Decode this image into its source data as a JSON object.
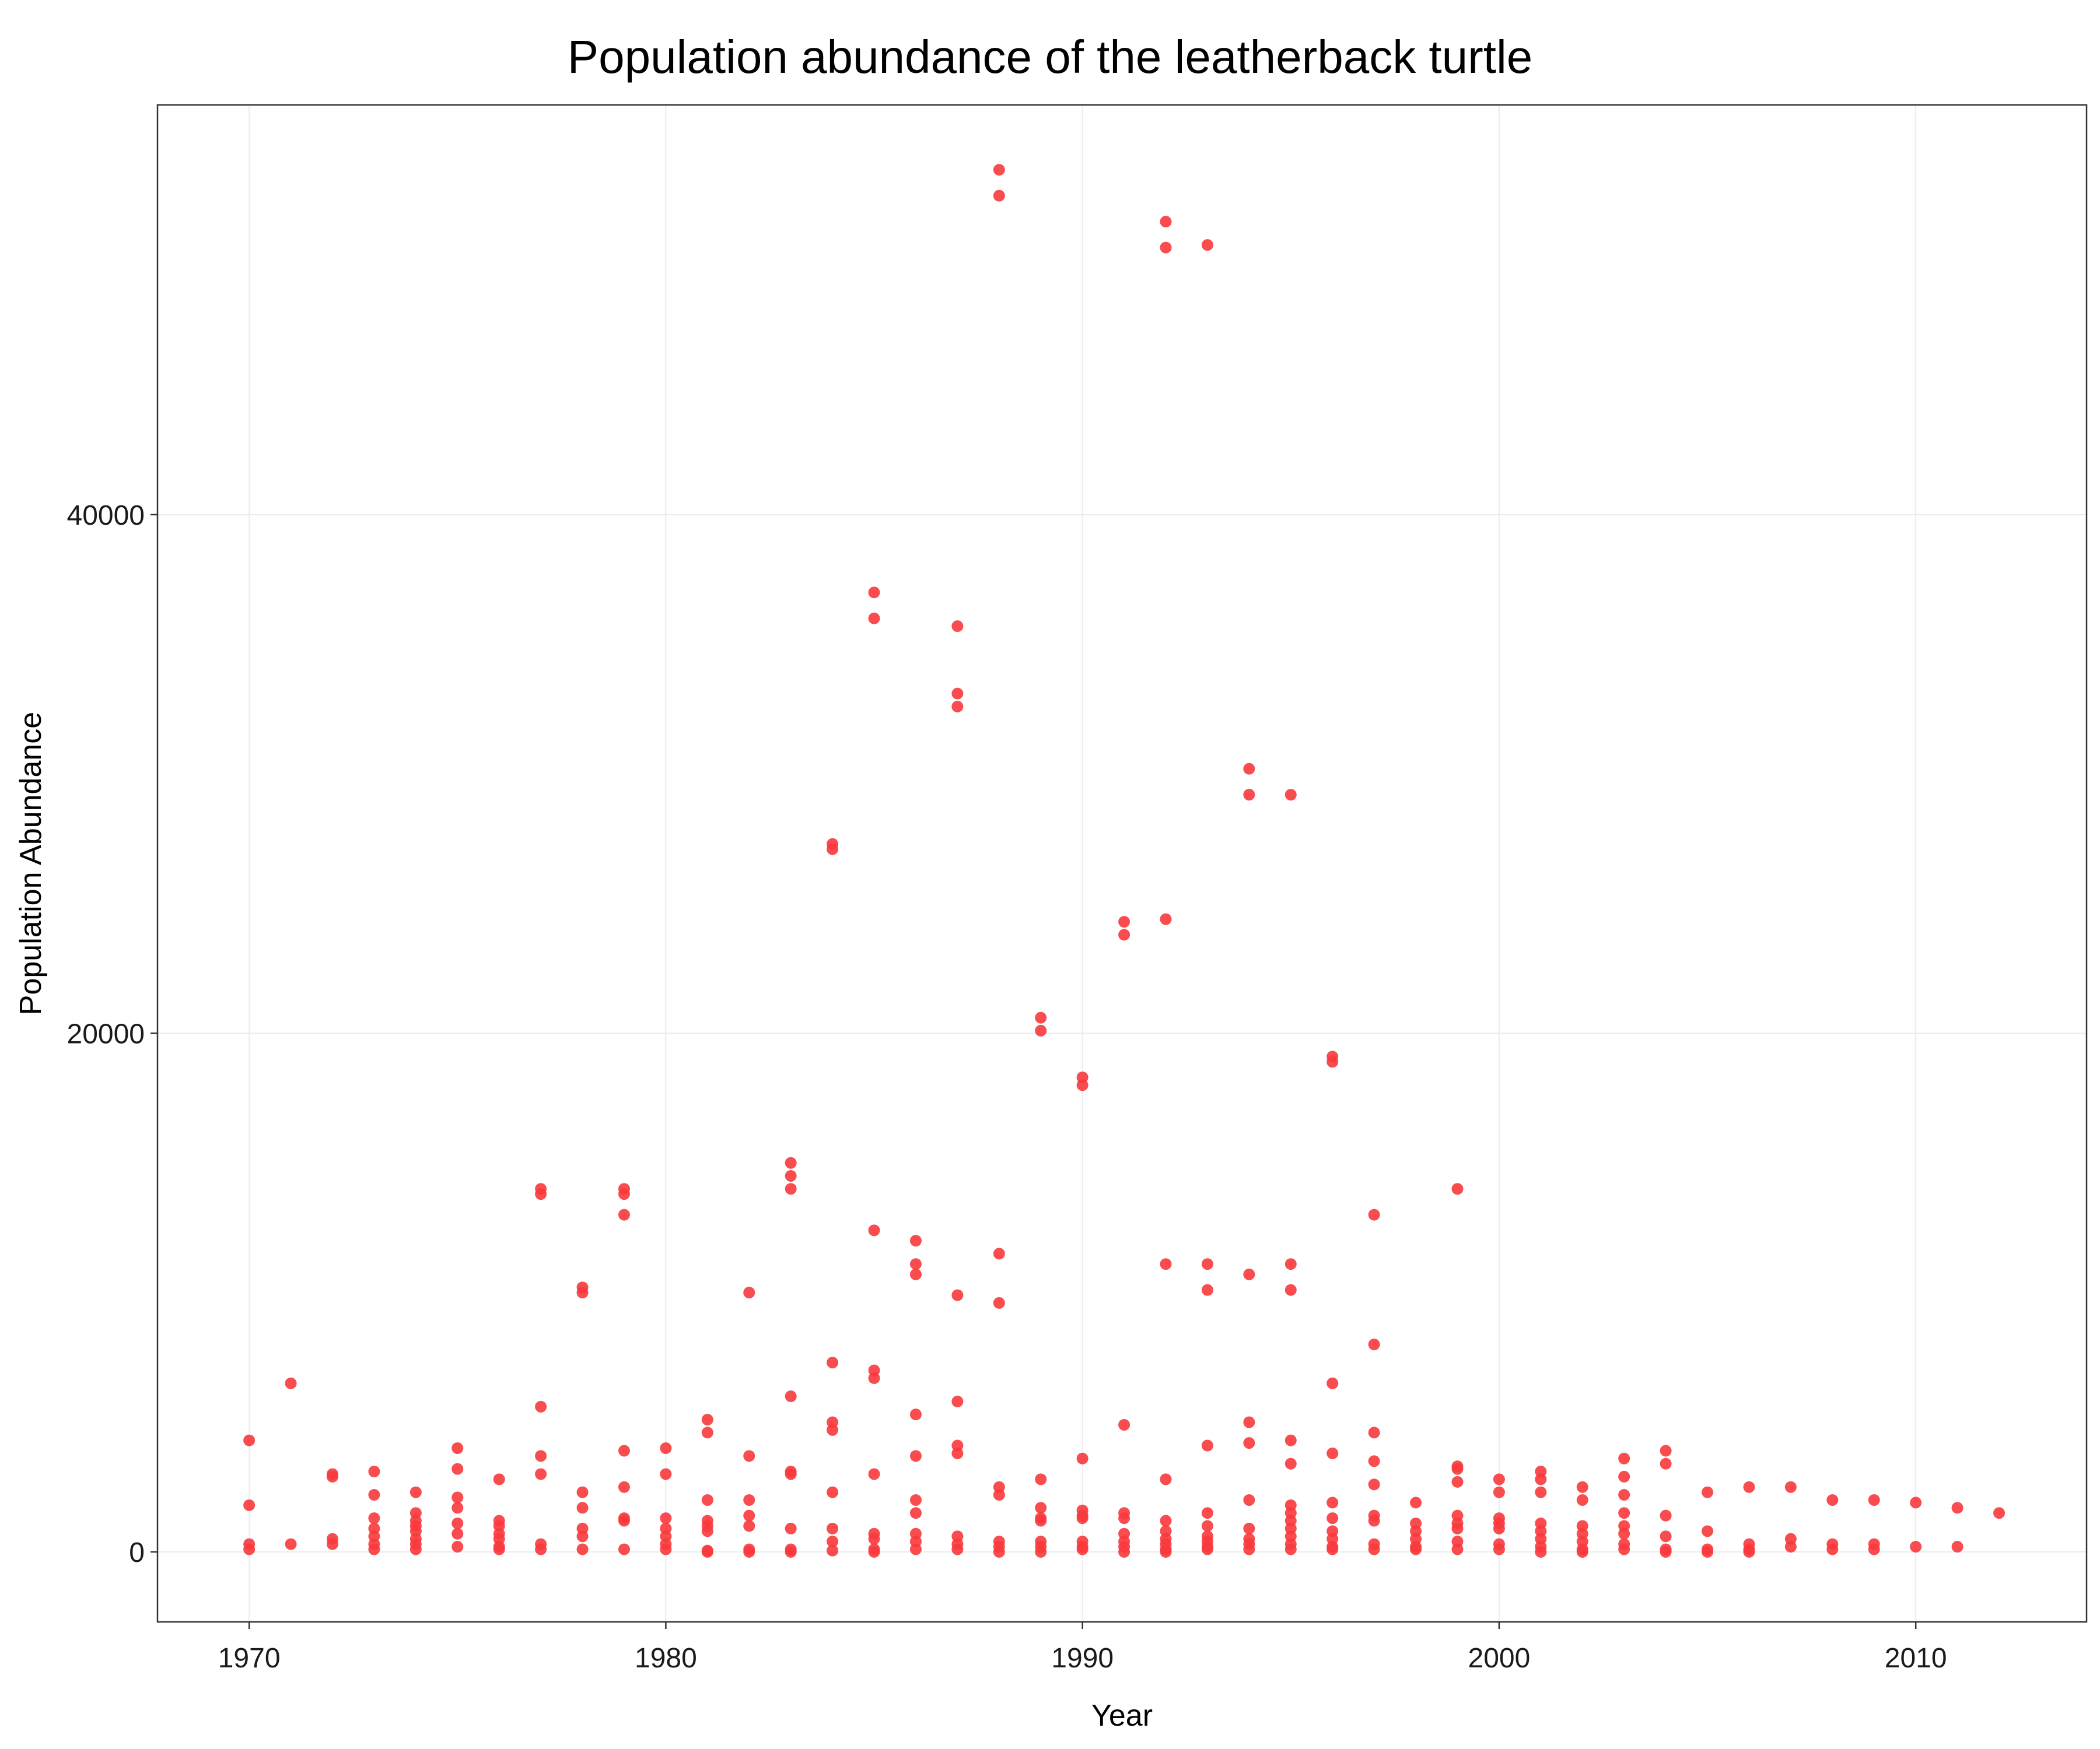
{
  "chart_data": {
    "type": "scatter",
    "title": "Population abundance of the leatherback turtle",
    "xlabel": "Year",
    "ylabel": "Population Abundance",
    "xlim": [
      1967.8,
      2014.1
    ],
    "ylim": [
      -2700,
      55800
    ],
    "x_ticks": [
      1970,
      1980,
      1990,
      2000,
      2010
    ],
    "y_ticks": [
      0,
      20000,
      40000
    ],
    "grid": true,
    "legend": "none",
    "point_color": "#F8393C",
    "points": [
      [
        1970,
        4300
      ],
      [
        1970,
        1800
      ],
      [
        1970,
        300
      ],
      [
        1970,
        100
      ],
      [
        1971,
        6500
      ],
      [
        1971,
        300
      ],
      [
        1972,
        3000
      ],
      [
        1972,
        2900
      ],
      [
        1972,
        500
      ],
      [
        1972,
        300
      ],
      [
        1973,
        3100
      ],
      [
        1973,
        2200
      ],
      [
        1973,
        1300
      ],
      [
        1973,
        900
      ],
      [
        1973,
        600
      ],
      [
        1973,
        300
      ],
      [
        1973,
        100
      ],
      [
        1974,
        2300
      ],
      [
        1974,
        1500
      ],
      [
        1974,
        1200
      ],
      [
        1974,
        1000
      ],
      [
        1974,
        800
      ],
      [
        1974,
        500
      ],
      [
        1974,
        300
      ],
      [
        1974,
        100
      ],
      [
        1975,
        4000
      ],
      [
        1975,
        3200
      ],
      [
        1975,
        2100
      ],
      [
        1975,
        1700
      ],
      [
        1975,
        1100
      ],
      [
        1975,
        700
      ],
      [
        1975,
        200
      ],
      [
        1976,
        2800
      ],
      [
        1976,
        1200
      ],
      [
        1976,
        1000
      ],
      [
        1976,
        700
      ],
      [
        1976,
        500
      ],
      [
        1976,
        200
      ],
      [
        1976,
        100
      ],
      [
        1977,
        14000
      ],
      [
        1977,
        13800
      ],
      [
        1977,
        5600
      ],
      [
        1977,
        3700
      ],
      [
        1977,
        3000
      ],
      [
        1977,
        300
      ],
      [
        1977,
        100
      ],
      [
        1978,
        10200
      ],
      [
        1978,
        10000
      ],
      [
        1978,
        2300
      ],
      [
        1978,
        1700
      ],
      [
        1978,
        900
      ],
      [
        1978,
        600
      ],
      [
        1978,
        100
      ],
      [
        1979,
        14000
      ],
      [
        1979,
        13800
      ],
      [
        1979,
        13000
      ],
      [
        1979,
        3900
      ],
      [
        1979,
        2500
      ],
      [
        1979,
        1300
      ],
      [
        1979,
        1200
      ],
      [
        1979,
        100
      ],
      [
        1980,
        4000
      ],
      [
        1980,
        3000
      ],
      [
        1980,
        1300
      ],
      [
        1980,
        900
      ],
      [
        1980,
        600
      ],
      [
        1980,
        300
      ],
      [
        1980,
        100
      ],
      [
        1981,
        5100
      ],
      [
        1981,
        4600
      ],
      [
        1981,
        2000
      ],
      [
        1981,
        1200
      ],
      [
        1981,
        1000
      ],
      [
        1981,
        800
      ],
      [
        1981,
        50
      ],
      [
        1981,
        0
      ],
      [
        1982,
        10000
      ],
      [
        1982,
        3700
      ],
      [
        1982,
        2000
      ],
      [
        1982,
        1400
      ],
      [
        1982,
        1000
      ],
      [
        1982,
        100
      ],
      [
        1982,
        0
      ],
      [
        1983,
        15000
      ],
      [
        1983,
        14500
      ],
      [
        1983,
        14000
      ],
      [
        1983,
        6000
      ],
      [
        1983,
        3100
      ],
      [
        1983,
        3000
      ],
      [
        1983,
        900
      ],
      [
        1983,
        100
      ],
      [
        1983,
        0
      ],
      [
        1984,
        27300
      ],
      [
        1984,
        27100
      ],
      [
        1984,
        7300
      ],
      [
        1984,
        5000
      ],
      [
        1984,
        4700
      ],
      [
        1984,
        2300
      ],
      [
        1984,
        900
      ],
      [
        1984,
        400
      ],
      [
        1984,
        50
      ],
      [
        1985,
        37000
      ],
      [
        1985,
        36000
      ],
      [
        1985,
        12400
      ],
      [
        1985,
        7000
      ],
      [
        1985,
        6700
      ],
      [
        1985,
        3000
      ],
      [
        1985,
        700
      ],
      [
        1985,
        500
      ],
      [
        1985,
        100
      ],
      [
        1985,
        0
      ],
      [
        1986,
        12000
      ],
      [
        1986,
        11100
      ],
      [
        1986,
        10700
      ],
      [
        1986,
        5300
      ],
      [
        1986,
        3700
      ],
      [
        1986,
        2000
      ],
      [
        1986,
        1500
      ],
      [
        1986,
        700
      ],
      [
        1986,
        400
      ],
      [
        1986,
        100
      ],
      [
        1987,
        35700
      ],
      [
        1987,
        33100
      ],
      [
        1987,
        32600
      ],
      [
        1987,
        9900
      ],
      [
        1987,
        5800
      ],
      [
        1987,
        4100
      ],
      [
        1987,
        3800
      ],
      [
        1987,
        600
      ],
      [
        1987,
        300
      ],
      [
        1987,
        100
      ],
      [
        1988,
        53300
      ],
      [
        1988,
        52300
      ],
      [
        1988,
        11500
      ],
      [
        1988,
        9600
      ],
      [
        1988,
        2500
      ],
      [
        1988,
        2200
      ],
      [
        1988,
        400
      ],
      [
        1988,
        200
      ],
      [
        1988,
        0
      ],
      [
        1989,
        20600
      ],
      [
        1989,
        20100
      ],
      [
        1989,
        2800
      ],
      [
        1989,
        1700
      ],
      [
        1989,
        1300
      ],
      [
        1989,
        1200
      ],
      [
        1989,
        400
      ],
      [
        1989,
        200
      ],
      [
        1989,
        0
      ],
      [
        1990,
        18300
      ],
      [
        1990,
        18000
      ],
      [
        1990,
        3600
      ],
      [
        1990,
        1600
      ],
      [
        1990,
        1400
      ],
      [
        1990,
        1300
      ],
      [
        1990,
        400
      ],
      [
        1990,
        200
      ],
      [
        1990,
        100
      ],
      [
        1991,
        24300
      ],
      [
        1991,
        23800
      ],
      [
        1991,
        4900
      ],
      [
        1991,
        1500
      ],
      [
        1991,
        1300
      ],
      [
        1991,
        700
      ],
      [
        1991,
        400
      ],
      [
        1991,
        200
      ],
      [
        1991,
        0
      ],
      [
        1992,
        51300
      ],
      [
        1992,
        50300
      ],
      [
        1992,
        24400
      ],
      [
        1992,
        11100
      ],
      [
        1992,
        2800
      ],
      [
        1992,
        1200
      ],
      [
        1992,
        800
      ],
      [
        1992,
        500
      ],
      [
        1992,
        300
      ],
      [
        1992,
        100
      ],
      [
        1992,
        0
      ],
      [
        1993,
        50400
      ],
      [
        1993,
        11100
      ],
      [
        1993,
        10100
      ],
      [
        1993,
        4100
      ],
      [
        1993,
        1500
      ],
      [
        1993,
        1000
      ],
      [
        1993,
        600
      ],
      [
        1993,
        400
      ],
      [
        1993,
        200
      ],
      [
        1993,
        100
      ],
      [
        1994,
        30200
      ],
      [
        1994,
        29200
      ],
      [
        1994,
        10700
      ],
      [
        1994,
        5000
      ],
      [
        1994,
        4200
      ],
      [
        1994,
        2000
      ],
      [
        1994,
        900
      ],
      [
        1994,
        500
      ],
      [
        1994,
        300
      ],
      [
        1994,
        100
      ],
      [
        1995,
        29200
      ],
      [
        1995,
        11100
      ],
      [
        1995,
        10100
      ],
      [
        1995,
        4300
      ],
      [
        1995,
        3400
      ],
      [
        1995,
        1800
      ],
      [
        1995,
        1500
      ],
      [
        1995,
        1200
      ],
      [
        1995,
        900
      ],
      [
        1995,
        600
      ],
      [
        1995,
        300
      ],
      [
        1995,
        100
      ],
      [
        1996,
        19100
      ],
      [
        1996,
        18900
      ],
      [
        1996,
        6500
      ],
      [
        1996,
        3800
      ],
      [
        1996,
        1900
      ],
      [
        1996,
        1300
      ],
      [
        1996,
        800
      ],
      [
        1996,
        500
      ],
      [
        1996,
        200
      ],
      [
        1996,
        100
      ],
      [
        1997,
        13000
      ],
      [
        1997,
        8000
      ],
      [
        1997,
        4600
      ],
      [
        1997,
        3500
      ],
      [
        1997,
        2600
      ],
      [
        1997,
        1400
      ],
      [
        1997,
        1200
      ],
      [
        1997,
        300
      ],
      [
        1997,
        100
      ],
      [
        1998,
        1900
      ],
      [
        1998,
        1100
      ],
      [
        1998,
        800
      ],
      [
        1998,
        500
      ],
      [
        1998,
        200
      ],
      [
        1998,
        100
      ],
      [
        1999,
        14000
      ],
      [
        1999,
        3300
      ],
      [
        1999,
        3200
      ],
      [
        1999,
        2700
      ],
      [
        1999,
        1400
      ],
      [
        1999,
        1100
      ],
      [
        1999,
        900
      ],
      [
        1999,
        400
      ],
      [
        1999,
        100
      ],
      [
        2000,
        2800
      ],
      [
        2000,
        2300
      ],
      [
        2000,
        1300
      ],
      [
        2000,
        1100
      ],
      [
        2000,
        900
      ],
      [
        2000,
        300
      ],
      [
        2000,
        100
      ],
      [
        2001,
        3100
      ],
      [
        2001,
        2800
      ],
      [
        2001,
        2300
      ],
      [
        2001,
        1100
      ],
      [
        2001,
        800
      ],
      [
        2001,
        500
      ],
      [
        2001,
        200
      ],
      [
        2001,
        0
      ],
      [
        2002,
        2500
      ],
      [
        2002,
        2000
      ],
      [
        2002,
        1000
      ],
      [
        2002,
        700
      ],
      [
        2002,
        400
      ],
      [
        2002,
        100
      ],
      [
        2002,
        0
      ],
      [
        2003,
        3600
      ],
      [
        2003,
        2900
      ],
      [
        2003,
        2200
      ],
      [
        2003,
        1500
      ],
      [
        2003,
        1000
      ],
      [
        2003,
        700
      ],
      [
        2003,
        300
      ],
      [
        2003,
        100
      ],
      [
        2004,
        3900
      ],
      [
        2004,
        3400
      ],
      [
        2004,
        1400
      ],
      [
        2004,
        600
      ],
      [
        2004,
        100
      ],
      [
        2004,
        0
      ],
      [
        2005,
        2300
      ],
      [
        2005,
        800
      ],
      [
        2005,
        100
      ],
      [
        2005,
        0
      ],
      [
        2006,
        2500
      ],
      [
        2006,
        300
      ],
      [
        2006,
        100
      ],
      [
        2006,
        0
      ],
      [
        2007,
        2500
      ],
      [
        2007,
        500
      ],
      [
        2007,
        200
      ],
      [
        2008,
        2000
      ],
      [
        2008,
        300
      ],
      [
        2008,
        100
      ],
      [
        2009,
        2000
      ],
      [
        2009,
        300
      ],
      [
        2009,
        100
      ],
      [
        2010,
        1900
      ],
      [
        2010,
        200
      ],
      [
        2011,
        1700
      ],
      [
        2011,
        200
      ],
      [
        2012,
        1500
      ]
    ]
  }
}
